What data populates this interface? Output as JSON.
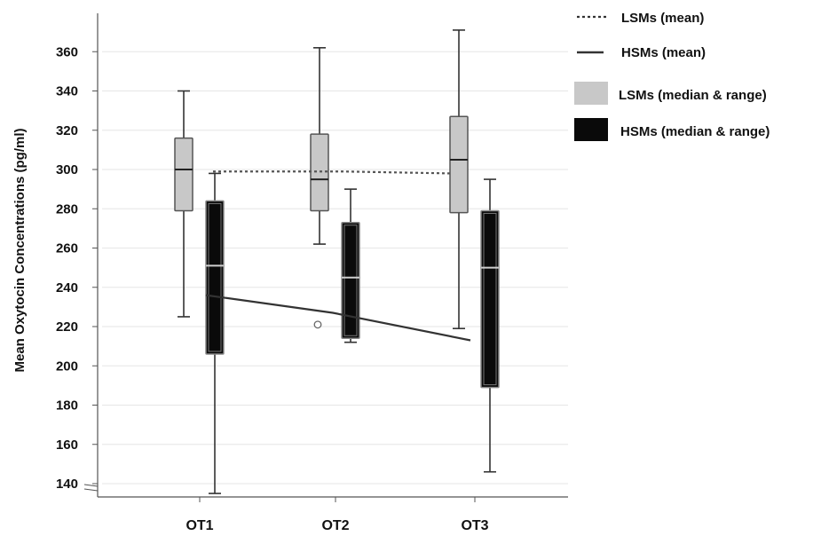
{
  "chart_data": {
    "type": "box",
    "ylabel": "Mean Oxytocin Concentrations (pg/ml)",
    "xlabel": "",
    "ylim": [
      133,
      372
    ],
    "yticks": [
      140,
      160,
      180,
      200,
      220,
      240,
      260,
      280,
      300,
      320,
      340,
      360
    ],
    "grid": true,
    "legend_position": "right",
    "categories": [
      "OT1",
      "OT2",
      "OT3"
    ],
    "series": [
      {
        "name": "LSMs (median & range)",
        "color": "#c8c8c8",
        "boxes": [
          {
            "min": 225,
            "q1": 279,
            "median": 300,
            "q3": 316,
            "max": 340
          },
          {
            "min": 262,
            "q1": 279,
            "median": 295,
            "q3": 318,
            "max": 362
          },
          {
            "min": 219,
            "q1": 278,
            "median": 305,
            "q3": 327,
            "max": 371
          }
        ]
      },
      {
        "name": "HSMs (median & range)",
        "color": "#0a0a0a",
        "boxes": [
          {
            "min": 135,
            "q1": 206,
            "median": 251,
            "q3": 284,
            "max": 298
          },
          {
            "min": 212,
            "q1": 214,
            "median": 245,
            "q3": 273,
            "max": 290
          },
          {
            "min": 146,
            "q1": 189,
            "median": 250,
            "q3": 279,
            "max": 295
          }
        ],
        "outliers": [
          {
            "category": "OT2",
            "value": 221
          }
        ]
      }
    ],
    "mean_lines": [
      {
        "name": "LSMs (mean)",
        "style": "dotted",
        "values": [
          299,
          299,
          298
        ]
      },
      {
        "name": "HSMs (mean)",
        "style": "solid",
        "values": [
          236,
          227,
          213
        ]
      }
    ],
    "legend": [
      {
        "label": "LSMs (mean)",
        "symbol": "dotted-line"
      },
      {
        "label": "HSMs (mean)",
        "symbol": "solid-line"
      },
      {
        "label": "LSMs (median & range)",
        "symbol": "gray-box"
      },
      {
        "label": "HSMs (median & range)",
        "symbol": "black-box"
      }
    ]
  }
}
